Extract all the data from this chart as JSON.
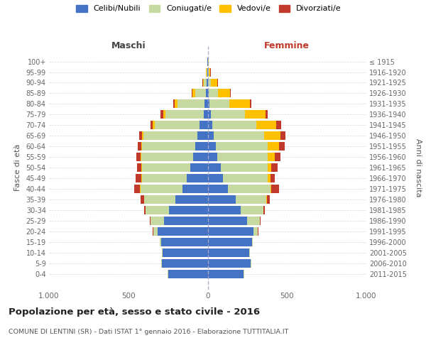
{
  "age_groups_bottom_to_top": [
    "0-4",
    "5-9",
    "10-14",
    "15-19",
    "20-24",
    "25-29",
    "30-34",
    "35-39",
    "40-44",
    "45-49",
    "50-54",
    "55-59",
    "60-64",
    "65-69",
    "70-74",
    "75-79",
    "80-84",
    "85-89",
    "90-94",
    "95-99",
    "100+"
  ],
  "birth_years_bottom_to_top": [
    "2011-2015",
    "2006-2010",
    "2001-2005",
    "1996-2000",
    "1991-1995",
    "1986-1990",
    "1981-1985",
    "1976-1980",
    "1971-1975",
    "1966-1970",
    "1961-1965",
    "1956-1960",
    "1951-1955",
    "1946-1950",
    "1941-1945",
    "1936-1940",
    "1931-1935",
    "1926-1930",
    "1921-1925",
    "1916-1920",
    "≤ 1915"
  ],
  "males": {
    "celibi": [
      250,
      290,
      285,
      295,
      315,
      275,
      245,
      205,
      160,
      130,
      110,
      90,
      80,
      65,
      50,
      25,
      18,
      10,
      5,
      2,
      2
    ],
    "coniugati": [
      1,
      2,
      4,
      8,
      28,
      85,
      145,
      195,
      265,
      285,
      305,
      330,
      335,
      340,
      285,
      240,
      170,
      70,
      18,
      4,
      1
    ],
    "vedovi": [
      0,
      0,
      0,
      0,
      0,
      1,
      0,
      1,
      2,
      2,
      3,
      3,
      5,
      7,
      10,
      14,
      22,
      18,
      8,
      3,
      1
    ],
    "divorziati": [
      0,
      0,
      0,
      0,
      2,
      5,
      12,
      22,
      38,
      38,
      28,
      28,
      22,
      22,
      17,
      18,
      5,
      4,
      2,
      0,
      0
    ]
  },
  "females": {
    "nubili": [
      228,
      272,
      262,
      278,
      288,
      248,
      208,
      178,
      128,
      98,
      82,
      62,
      52,
      38,
      28,
      18,
      10,
      7,
      4,
      2,
      2
    ],
    "coniugate": [
      1,
      1,
      3,
      8,
      28,
      82,
      142,
      192,
      268,
      282,
      298,
      318,
      328,
      318,
      278,
      218,
      128,
      58,
      18,
      4,
      1
    ],
    "vedove": [
      0,
      0,
      0,
      0,
      0,
      1,
      2,
      3,
      6,
      14,
      22,
      42,
      68,
      102,
      128,
      128,
      128,
      78,
      40,
      10,
      2
    ],
    "divorziate": [
      0,
      0,
      0,
      0,
      2,
      4,
      8,
      18,
      48,
      28,
      38,
      38,
      38,
      32,
      28,
      14,
      7,
      4,
      3,
      2,
      0
    ]
  },
  "colors": {
    "celibi_nubili": "#4472c4",
    "coniugati": "#c5d9a0",
    "vedovi": "#ffc000",
    "divorziati": "#c0392b"
  },
  "title": "Popolazione per età, sesso e stato civile - 2016",
  "subtitle": "COMUNE DI LENTINI (SR) - Dati ISTAT 1° gennaio 2016 - Elaborazione TUTTITALIA.IT",
  "xlim": 1000,
  "background_color": "#ffffff",
  "grid_color": "#cccccc",
  "maschi_color": "#444444",
  "femmine_color": "#c0392b"
}
